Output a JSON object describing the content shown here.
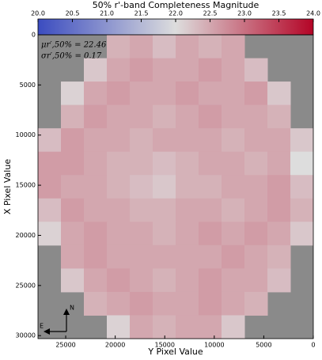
{
  "chart_data": {
    "type": "heatmap",
    "title": "50% r'-band Completeness Magnitude",
    "xlabel": "Y Pixel Value",
    "ylabel": "X Pixel Value",
    "xlim": [
      27800,
      0
    ],
    "xticks": [
      25000,
      20000,
      15000,
      10000,
      5000,
      0
    ],
    "ylim": [
      0,
      30300
    ],
    "yticks": [
      0,
      5000,
      10000,
      15000,
      20000,
      25000,
      30000
    ],
    "clim": [
      20,
      24
    ],
    "cticks": [
      {
        "value": 20,
        "label": "20.0"
      },
      {
        "value": 20.5,
        "label": "20.5"
      },
      {
        "value": 21,
        "label": "21.0"
      },
      {
        "value": 21.5,
        "label": "21.5"
      },
      {
        "value": 22,
        "label": "22.0"
      },
      {
        "value": 22.5,
        "label": "22.5"
      },
      {
        "value": 23,
        "label": "23.0"
      },
      {
        "value": 23.5,
        "label": "23.5"
      },
      {
        "value": 24,
        "label": "24.0"
      }
    ],
    "colormap": [
      "#3b4cc0",
      "#dddddd",
      "#b40426"
    ],
    "annotations": [
      "μr′,50% = 22.46",
      "σr′,50% = 0.17",
      "N",
      "E"
    ],
    "values": [
      [
        null,
        null,
        null,
        22.4,
        22.5,
        22.3,
        22.5,
        22.4,
        22.5,
        null,
        null,
        null
      ],
      [
        null,
        null,
        22.2,
        22.5,
        22.6,
        22.5,
        22.5,
        22.6,
        22.5,
        22.3,
        null,
        null
      ],
      [
        null,
        22.1,
        22.5,
        22.6,
        22.5,
        22.5,
        22.6,
        22.5,
        22.5,
        22.6,
        22.2,
        null
      ],
      [
        null,
        22.4,
        22.6,
        22.5,
        22.5,
        22.4,
        22.5,
        22.6,
        22.5,
        22.5,
        22.4,
        null
      ],
      [
        22.3,
        22.6,
        22.5,
        22.5,
        22.4,
        22.5,
        22.5,
        22.5,
        22.4,
        22.5,
        22.5,
        22.2
      ],
      [
        22.6,
        22.6,
        22.5,
        22.4,
        22.4,
        22.3,
        22.4,
        22.5,
        22.5,
        22.4,
        22.5,
        22.0
      ],
      [
        22.6,
        22.5,
        22.5,
        22.4,
        22.3,
        22.2,
        22.4,
        22.4,
        22.5,
        22.5,
        22.6,
        22.3
      ],
      [
        22.3,
        22.6,
        22.5,
        22.5,
        22.4,
        22.4,
        22.5,
        22.5,
        22.4,
        22.5,
        22.6,
        22.4
      ],
      [
        22.1,
        22.5,
        22.6,
        22.5,
        22.5,
        22.4,
        22.5,
        22.6,
        22.5,
        22.6,
        22.5,
        22.2
      ],
      [
        null,
        22.5,
        22.6,
        22.5,
        22.5,
        22.5,
        22.5,
        22.5,
        22.6,
        22.5,
        22.4,
        null
      ],
      [
        null,
        22.2,
        22.5,
        22.6,
        22.5,
        22.4,
        22.5,
        22.6,
        22.5,
        22.5,
        22.3,
        null
      ],
      [
        null,
        null,
        22.4,
        22.5,
        22.6,
        22.5,
        22.5,
        22.6,
        22.5,
        22.4,
        null,
        null
      ],
      [
        null,
        null,
        null,
        22.1,
        22.5,
        22.4,
        22.5,
        22.5,
        22.2,
        null,
        null,
        null
      ]
    ]
  }
}
